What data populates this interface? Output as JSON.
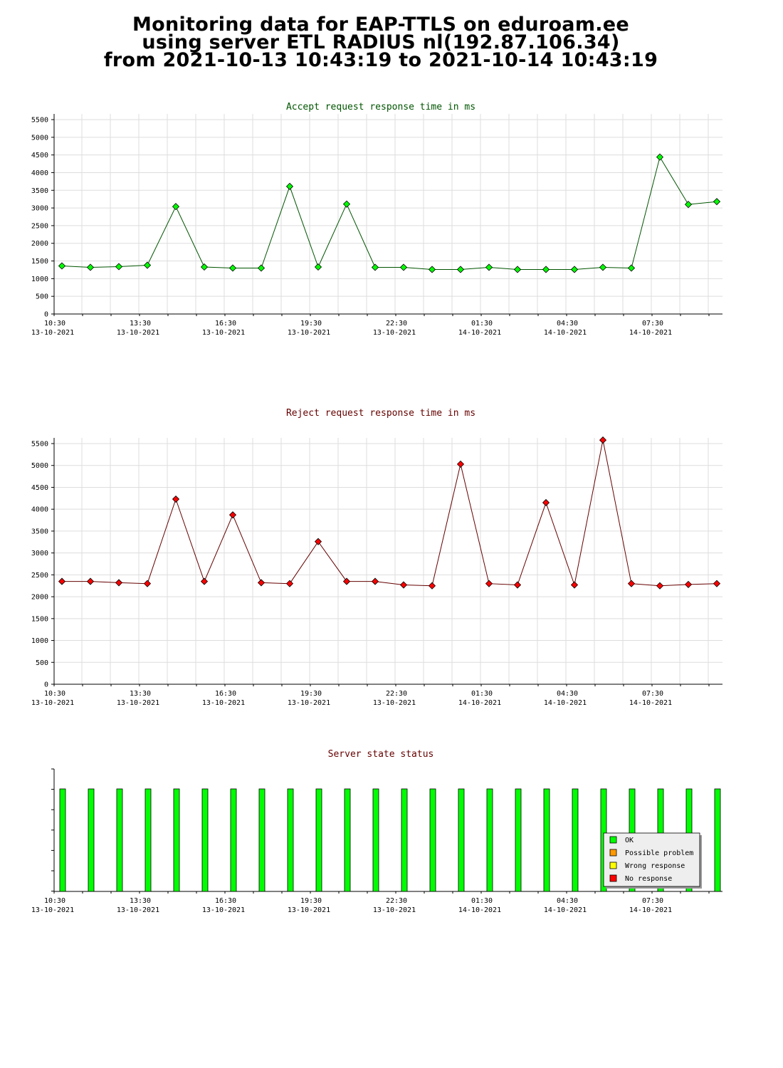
{
  "header": {
    "line1": "Monitoring data for EAP-TTLS on eduroam.ee",
    "line2": "using server ETL RADIUS nl(192.87.106.34)",
    "line3": "from 2021-10-13 10:43:19 to 2021-10-14 10:43:19"
  },
  "colors": {
    "accept": "#00ff00",
    "accept_line": "#005500",
    "reject": "#ff0000",
    "reject_line": "#660000",
    "title_accept": "#005500",
    "title_reject": "#660000"
  },
  "x_ticks": [
    {
      "time": "10:30",
      "date": "13-10-2021"
    },
    {
      "time": "13:30",
      "date": "13-10-2021"
    },
    {
      "time": "16:30",
      "date": "13-10-2021"
    },
    {
      "time": "19:30",
      "date": "13-10-2021"
    },
    {
      "time": "22:30",
      "date": "13-10-2021"
    },
    {
      "time": "01:30",
      "date": "14-10-2021"
    },
    {
      "time": "04:30",
      "date": "14-10-2021"
    },
    {
      "time": "07:30",
      "date": "14-10-2021"
    }
  ],
  "chart_data": [
    {
      "type": "line",
      "title": "Accept request response time in ms",
      "y_ticks": [
        "0",
        "500",
        "1000",
        "1500",
        "2000",
        "2500",
        "3000",
        "3500",
        "4000",
        "4500",
        "5000",
        "5500"
      ],
      "ylim": [
        0,
        5500
      ],
      "x": [
        "10:45",
        "11:45",
        "12:45",
        "13:45",
        "14:45",
        "15:45",
        "16:45",
        "17:45",
        "18:45",
        "19:45",
        "20:45",
        "21:45",
        "22:45",
        "23:45",
        "00:45",
        "01:45",
        "02:45",
        "03:45",
        "04:45",
        "05:45",
        "06:45",
        "07:45",
        "08:45",
        "09:45"
      ],
      "values": [
        1360,
        1320,
        1340,
        1380,
        3040,
        1330,
        1300,
        1300,
        3610,
        1330,
        3110,
        1320,
        1320,
        1260,
        1260,
        1320,
        1260,
        1260,
        1260,
        1320,
        1300,
        4440,
        3100,
        3180
      ]
    },
    {
      "type": "line",
      "title": "Reject request response time in ms",
      "y_ticks": [
        "0",
        "500",
        "1000",
        "1500",
        "2000",
        "2500",
        "3000",
        "3500",
        "4000",
        "4500",
        "5000",
        "5500"
      ],
      "ylim": [
        0,
        5500
      ],
      "x": [
        "10:45",
        "11:45",
        "12:45",
        "13:45",
        "14:45",
        "15:45",
        "16:45",
        "17:45",
        "18:45",
        "19:45",
        "20:45",
        "21:45",
        "22:45",
        "23:45",
        "00:45",
        "01:45",
        "02:45",
        "03:45",
        "04:45",
        "05:45",
        "06:45",
        "07:45",
        "08:45",
        "09:45"
      ],
      "values": [
        2350,
        2350,
        2320,
        2300,
        4230,
        2350,
        3870,
        2320,
        2300,
        3260,
        2350,
        2350,
        2270,
        2250,
        5030,
        2300,
        2270,
        4150,
        2270,
        5580,
        2300,
        2250,
        2280,
        2300
      ]
    },
    {
      "type": "bar",
      "title": "Server state status",
      "x": [
        "10:45",
        "11:45",
        "12:45",
        "13:45",
        "14:45",
        "15:45",
        "16:45",
        "17:45",
        "18:45",
        "19:45",
        "20:45",
        "21:45",
        "22:45",
        "23:45",
        "00:45",
        "01:45",
        "02:45",
        "03:45",
        "04:45",
        "05:45",
        "06:45",
        "07:45",
        "08:45",
        "09:45"
      ],
      "status": [
        "OK",
        "OK",
        "OK",
        "OK",
        "OK",
        "OK",
        "OK",
        "OK",
        "OK",
        "OK",
        "OK",
        "OK",
        "OK",
        "OK",
        "OK",
        "OK",
        "OK",
        "OK",
        "OK",
        "OK",
        "OK",
        "OK",
        "OK",
        "OK"
      ],
      "legend": [
        {
          "label": "OK",
          "color": "#00ff00"
        },
        {
          "label": "Possible problem",
          "color": "#ff9900"
        },
        {
          "label": "Wrong response",
          "color": "#ffff00"
        },
        {
          "label": "No response",
          "color": "#ff0000"
        }
      ],
      "legend_position": "bottom-right"
    }
  ]
}
